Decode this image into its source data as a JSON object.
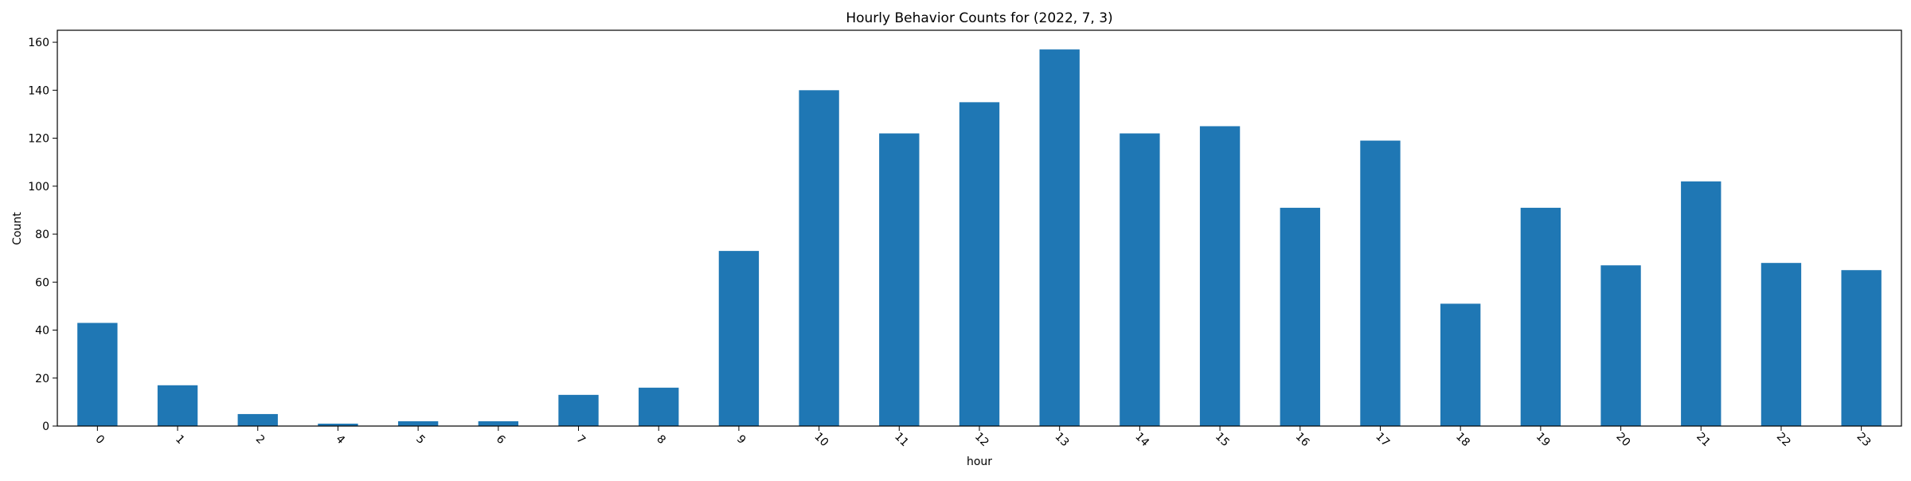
{
  "chart_data": {
    "type": "bar",
    "title": "Hourly Behavior Counts for (2022, 7, 3)",
    "xlabel": "hour",
    "ylabel": "Count",
    "categories": [
      "0",
      "1",
      "2",
      "4",
      "5",
      "6",
      "7",
      "8",
      "9",
      "10",
      "11",
      "12",
      "13",
      "14",
      "15",
      "16",
      "17",
      "18",
      "19",
      "20",
      "21",
      "22",
      "23"
    ],
    "values": [
      43,
      17,
      5,
      1,
      2,
      2,
      13,
      16,
      73,
      140,
      122,
      135,
      157,
      122,
      125,
      91,
      119,
      51,
      91,
      67,
      102,
      68,
      65
    ],
    "ylim": [
      0,
      165
    ],
    "yticks": [
      0,
      20,
      40,
      60,
      80,
      100,
      120,
      140,
      160
    ],
    "grid": false,
    "legend": "none",
    "bar_color": "#1f77b4",
    "xtick_rotation": "45deg"
  }
}
